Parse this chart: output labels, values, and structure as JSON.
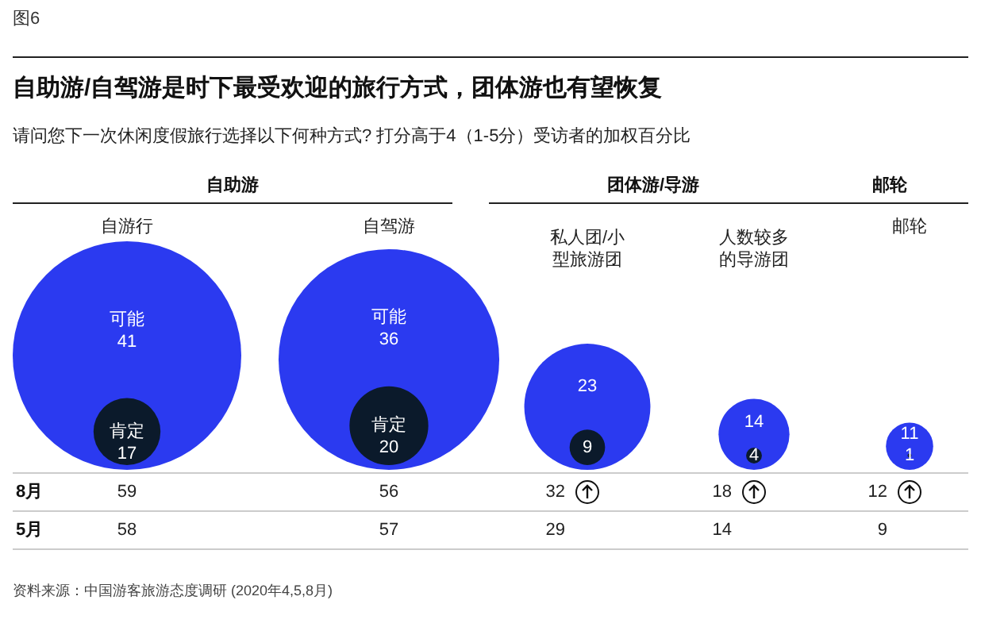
{
  "chart_data": {
    "type": "other",
    "title": "自助游/自驾游是时下最受欢迎的旅行方式，团体游也有望恢复",
    "subtitle": "请问您下一次休闲度假旅行选择以下何种方式? 打分高于4（1-5分）受访者的加权百分比",
    "categories": [
      "自游行",
      "自驾游",
      "私人团/小型旅游团",
      "人数较多的导游团",
      "邮轮"
    ],
    "series": [
      {
        "name": "可能",
        "color": "#2b3af0",
        "values": [
          41,
          36,
          23,
          14,
          11
        ]
      },
      {
        "name": "肯定",
        "color": "#0b1a2b",
        "values": [
          17,
          20,
          9,
          4,
          1
        ]
      },
      {
        "name": "8月",
        "values": [
          59,
          56,
          32,
          18,
          12
        ]
      },
      {
        "name": "5月",
        "values": [
          58,
          57,
          29,
          14,
          9
        ]
      }
    ],
    "data_labels": true,
    "annotations": [
      "图6",
      "自助游",
      "团体游/导游",
      "邮轮",
      "资料来源：中国游客旅游态度调研 (2020年4,5,8月)"
    ]
  }
}
